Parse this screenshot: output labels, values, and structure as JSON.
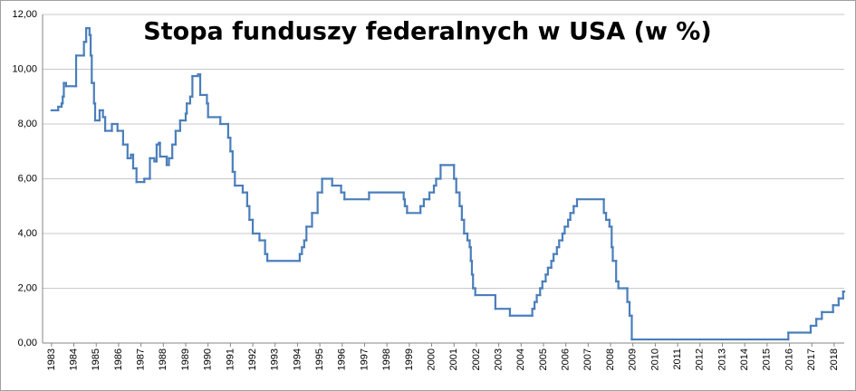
{
  "chart_data": {
    "type": "line",
    "step": "post",
    "title": "Stopa funduszy federalnych w USA (w %)",
    "xlim": [
      1982.6,
      2018.45
    ],
    "xticks": [
      1983,
      1984,
      1985,
      1986,
      1987,
      1988,
      1989,
      1990,
      1991,
      1992,
      1993,
      1994,
      1995,
      1996,
      1997,
      1998,
      1999,
      2000,
      2001,
      2002,
      2003,
      2004,
      2005,
      2006,
      2007,
      2008,
      2009,
      2010,
      2011,
      2012,
      2013,
      2014,
      2015,
      2016,
      2017,
      2018
    ],
    "ylim": [
      0,
      12
    ],
    "yticks": [
      {
        "value": 0,
        "label": "0,00"
      },
      {
        "value": 2,
        "label": "2,00"
      },
      {
        "value": 4,
        "label": "4,00"
      },
      {
        "value": 6,
        "label": "6,00"
      },
      {
        "value": 8,
        "label": "8,00"
      },
      {
        "value": 10,
        "label": "10,00"
      },
      {
        "value": 12,
        "label": "12,00"
      }
    ],
    "grid": true,
    "series": [
      {
        "color": "#4a7ebb",
        "x": [
          1983.0,
          1983.3,
          1983.45,
          1983.5,
          1983.55,
          1983.65,
          1984.1,
          1984.45,
          1984.55,
          1984.7,
          1984.75,
          1984.8,
          1984.9,
          1984.95,
          1985.15,
          1985.3,
          1985.4,
          1985.7,
          1985.95,
          1986.2,
          1986.4,
          1986.55,
          1986.65,
          1986.8,
          1987.15,
          1987.4,
          1987.6,
          1987.7,
          1987.8,
          1987.85,
          1988.15,
          1988.25,
          1988.4,
          1988.55,
          1988.75,
          1989.0,
          1989.05,
          1989.2,
          1989.3,
          1989.55,
          1989.65,
          1989.95,
          1990.0,
          1990.55,
          1990.9,
          1991.0,
          1991.1,
          1991.2,
          1991.55,
          1991.75,
          1991.85,
          1992.0,
          1992.3,
          1992.55,
          1992.65,
          1994.1,
          1994.2,
          1994.3,
          1994.4,
          1994.65,
          1994.9,
          1995.1,
          1995.55,
          1995.95,
          1996.1,
          1997.2,
          1998.75,
          1998.8,
          1998.9,
          1999.5,
          1999.65,
          1999.9,
          2000.1,
          2000.2,
          2000.4,
          2001.0,
          2001.1,
          2001.25,
          2001.35,
          2001.45,
          2001.6,
          2001.7,
          2001.75,
          2001.8,
          2001.85,
          2001.95,
          2002.85,
          2003.5,
          2004.5,
          2004.6,
          2004.7,
          2004.85,
          2004.95,
          2005.1,
          2005.2,
          2005.35,
          2005.45,
          2005.6,
          2005.7,
          2005.85,
          2005.95,
          2006.1,
          2006.2,
          2006.35,
          2006.5,
          2007.7,
          2007.8,
          2007.95,
          2008.05,
          2008.1,
          2008.25,
          2008.35,
          2008.75,
          2008.85,
          2008.95,
          2015.95,
          2016.95,
          2017.2,
          2017.45,
          2017.95,
          2018.2,
          2018.4
        ],
        "values": [
          8.5,
          8.63,
          8.75,
          9.0,
          9.5,
          9.38,
          10.5,
          11.0,
          11.5,
          11.25,
          10.5,
          9.5,
          8.75,
          8.13,
          8.5,
          8.25,
          7.75,
          8.0,
          7.75,
          7.25,
          6.75,
          6.88,
          6.38,
          5.88,
          6.0,
          6.75,
          6.63,
          7.25,
          7.31,
          6.81,
          6.5,
          6.75,
          7.25,
          7.75,
          8.13,
          8.38,
          8.75,
          9.0,
          9.75,
          9.81,
          9.06,
          8.75,
          8.25,
          8.0,
          7.5,
          7.0,
          6.25,
          5.75,
          5.5,
          5.0,
          4.5,
          4.0,
          3.75,
          3.25,
          3.0,
          3.25,
          3.5,
          3.75,
          4.25,
          4.75,
          5.5,
          6.0,
          5.75,
          5.5,
          5.25,
          5.5,
          5.25,
          5.0,
          4.75,
          5.0,
          5.25,
          5.5,
          5.75,
          6.0,
          6.5,
          6.0,
          5.5,
          5.0,
          4.5,
          4.0,
          3.75,
          3.5,
          3.0,
          2.5,
          2.0,
          1.75,
          1.25,
          1.0,
          1.25,
          1.5,
          1.75,
          2.0,
          2.25,
          2.5,
          2.75,
          3.0,
          3.25,
          3.5,
          3.75,
          4.0,
          4.25,
          4.5,
          4.75,
          5.0,
          5.25,
          4.75,
          4.5,
          4.25,
          3.5,
          3.0,
          2.25,
          2.0,
          1.5,
          1.0,
          0.13,
          0.38,
          0.63,
          0.88,
          1.13,
          1.38,
          1.63,
          1.88
        ]
      }
    ]
  }
}
